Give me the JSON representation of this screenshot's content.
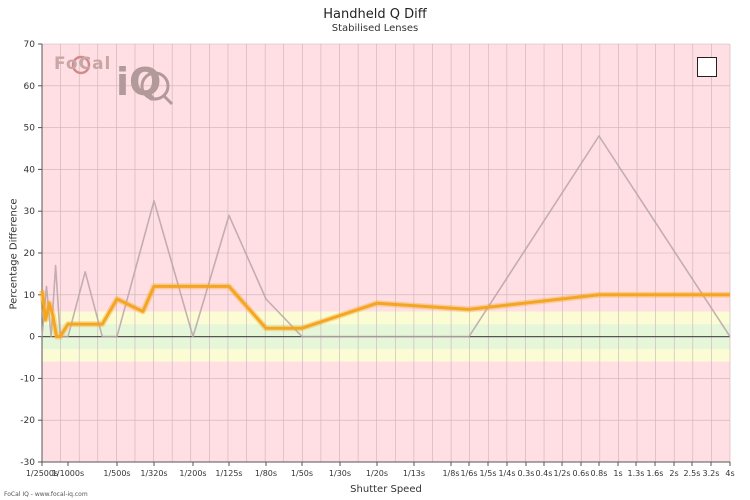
{
  "chart_data": {
    "type": "line",
    "title": "Handheld Q Diff",
    "subtitle": "Stabilised Lenses",
    "xlabel": "Shutter Speed",
    "ylabel": "Percentage Difference",
    "ylim": [
      -30,
      70
    ],
    "yticks": [
      70,
      60,
      50,
      40,
      30,
      20,
      10,
      0,
      -10,
      -20,
      -30
    ],
    "x_categories": [
      "1/2500s",
      "1/1000s",
      "1/500s",
      "1/320s",
      "1/200s",
      "1/125s",
      "1/80s",
      "1/50s",
      "1/30s",
      "1/20s",
      "1/13s",
      "1/8s",
      "1/6s",
      "1/5s",
      "1/4s",
      "0.3s",
      "0.4s",
      "1/2s",
      "0.6s",
      "0.8s",
      "1s",
      "1.3s",
      "1.6s",
      "2s",
      "2.5s",
      "3.2s",
      "4s"
    ],
    "bands": [
      {
        "from": -6,
        "to": 6,
        "color": "#fbfcd4"
      },
      {
        "from": -3,
        "to": 3,
        "color": "#e6f7d9"
      }
    ],
    "background_color": "#ffdfe3",
    "grid": true,
    "series": [
      {
        "color": "#f4a623",
        "points": [
          [
            "1/2500s",
            11
          ],
          [
            "1/2500s",
            4
          ],
          [
            "1/2500s",
            8
          ],
          [
            "1/2500s",
            5
          ],
          [
            "1/2500s",
            0
          ],
          [
            "1/2500s",
            0
          ],
          [
            "1/1000s",
            3
          ],
          [
            "1/1000s",
            3
          ],
          [
            "1/500s",
            9
          ],
          [
            "1/500s",
            6
          ],
          [
            "1/320s",
            12
          ],
          [
            "1/320s",
            12
          ],
          [
            "1/200s",
            12
          ],
          [
            "1/125s",
            12
          ],
          [
            "1/80s",
            2
          ],
          [
            "1/50s",
            2
          ],
          [
            "1/20s",
            8
          ],
          [
            "1/6s",
            6.5
          ],
          [
            "0.8s",
            10
          ],
          [
            "4s",
            10
          ]
        ]
      },
      {
        "color": "#b9a4a9",
        "points": [
          [
            "1/2500s",
            0
          ],
          [
            "1/2500s",
            12
          ],
          [
            "1/2500s",
            0
          ],
          [
            "1/2500s",
            17
          ],
          [
            "1/2500s",
            0
          ],
          [
            "1/1000s",
            0
          ],
          [
            "1/1000s",
            15.5
          ],
          [
            "1/1000s",
            0
          ],
          [
            "1/500s",
            0
          ],
          [
            "1/320s",
            32.5
          ],
          [
            "1/200s",
            0
          ],
          [
            "1/125s",
            29
          ],
          [
            "1/80s",
            9
          ],
          [
            "1/50s",
            0
          ],
          [
            "1/6s",
            0
          ],
          [
            "0.8s",
            48
          ],
          [
            "4s",
            0
          ]
        ]
      }
    ],
    "legend_position": "top-right"
  },
  "logo": {
    "word": "FoCal",
    "sub": "iQ"
  },
  "footer": "FoCal IQ - www.focal-iq.com"
}
